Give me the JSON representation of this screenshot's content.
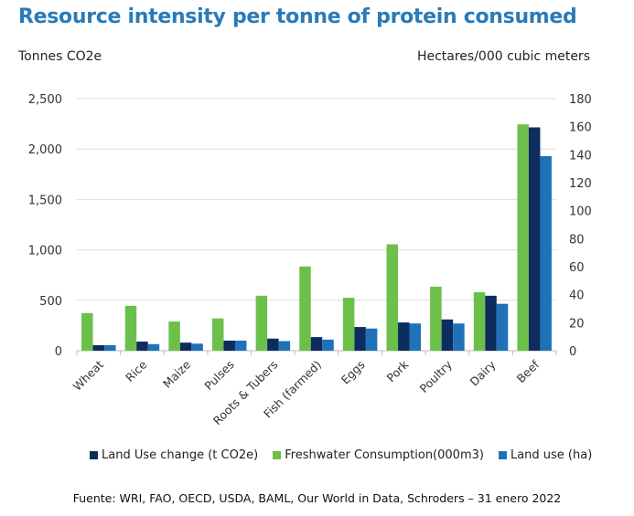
{
  "chart_data": {
    "type": "bar",
    "title": "Resource intensity per tonne of protein consumed",
    "ylabel_left": "Tonnes CO2e",
    "ylabel_right": "Hectares/000 cubic meters",
    "ylim_left": [
      0,
      2500
    ],
    "ylim_right": [
      0,
      180
    ],
    "yticks_left": [
      "0",
      "500",
      "1,000",
      "1,500",
      "2,000",
      "2,500"
    ],
    "yticks_right": [
      "0",
      "20",
      "40",
      "60",
      "80",
      "100",
      "120",
      "140",
      "160",
      "180"
    ],
    "grid": true,
    "legend_position": "bottom",
    "categories": [
      "Wheat",
      "Rice",
      "Maize",
      "Pulses",
      "Roots & Tubers",
      "Fish (farmed)",
      "Eggs",
      "Pork",
      "Poultry",
      "Dairy",
      "Beef"
    ],
    "series": [
      {
        "name": "Freshwater Consumption(000m3)",
        "color": "#6cc04a",
        "values": [
          373,
          445,
          290,
          320,
          545,
          835,
          525,
          1055,
          635,
          580,
          2245
        ]
      },
      {
        "name": "Land Use change (t CO2e)",
        "color": "#0d2d5e",
        "values": [
          55,
          90,
          80,
          100,
          120,
          135,
          235,
          280,
          310,
          545,
          2215
        ]
      },
      {
        "name": "Land use (ha)",
        "color": "#1f72b8",
        "values": [
          55,
          65,
          70,
          100,
          95,
          110,
          220,
          270,
          270,
          465,
          1930
        ]
      }
    ],
    "legend": [
      {
        "label": "Land Use change (t CO2e)",
        "color": "#0d2d5e"
      },
      {
        "label": "Freshwater Consumption(000m3)",
        "color": "#6cc04a"
      },
      {
        "label": "Land use (ha)",
        "color": "#1f72b8"
      }
    ],
    "source": "Fuente: WRI, FAO, OECD, USDA, BAML, Our World in Data, Schroders – 31 enero 2022"
  }
}
